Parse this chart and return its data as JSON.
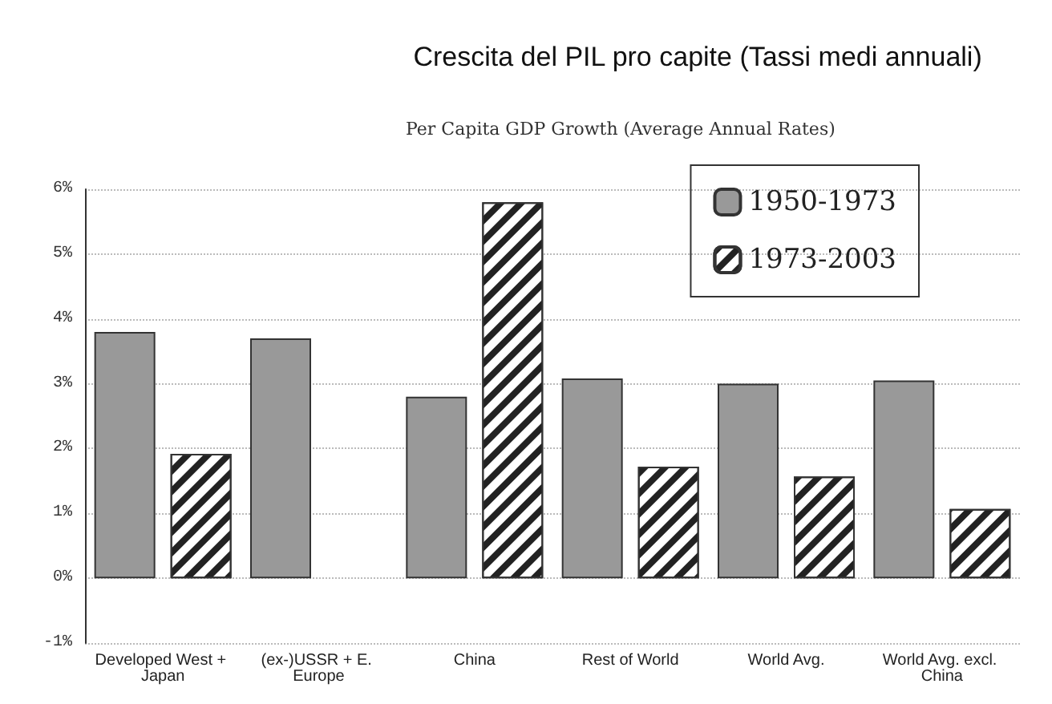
{
  "chart_data": {
    "type": "bar",
    "title": "Crescita del PIL pro capite (Tassi medi annuali)",
    "subtitle": "Per Capita GDP Growth (Average Annual Rates)",
    "categories": [
      "Developed West + Japan",
      "(ex-)USSR + E. Europe",
      "China",
      "Rest of World",
      "World Avg.",
      "World Avg. excl. China"
    ],
    "series": [
      {
        "name": "1950-1973",
        "color": "#999999",
        "values": [
          3.8,
          3.7,
          2.8,
          3.08,
          3.0,
          3.05
        ]
      },
      {
        "name": "1973-2003",
        "color": "#ffffff",
        "values": [
          1.92,
          null,
          5.8,
          1.72,
          1.57,
          1.07
        ]
      }
    ],
    "ylim": [
      -1,
      6
    ],
    "yticks": [
      {
        "value": -1,
        "label": "-1%"
      },
      {
        "value": 0,
        "label": "0%"
      },
      {
        "value": 1,
        "label": "1%"
      },
      {
        "value": 2,
        "label": "2%"
      },
      {
        "value": 3,
        "label": "3%"
      },
      {
        "value": 4,
        "label": "4%"
      },
      {
        "value": 5,
        "label": "5%"
      },
      {
        "value": 6,
        "label": "6%"
      }
    ],
    "grid": "y",
    "legend": "top right"
  }
}
